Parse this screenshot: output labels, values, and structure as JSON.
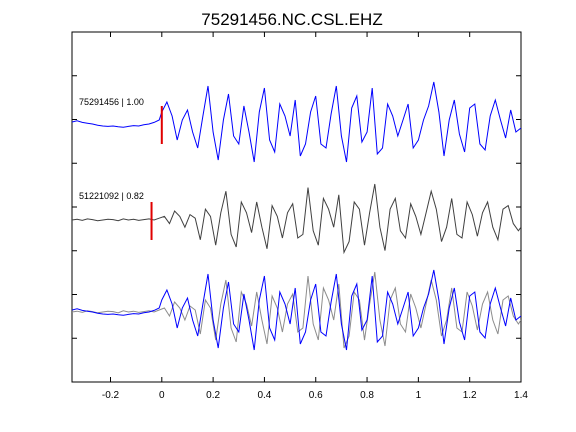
{
  "chart_data": {
    "type": "line",
    "title": "75291456.NC.CSL.EHZ",
    "xlabel": "",
    "ylabel": "",
    "xlim": [
      -0.35,
      1.4
    ],
    "x_ticks": [
      -0.2,
      0,
      0.2,
      0.4,
      0.6,
      0.8,
      1,
      1.2,
      1.4
    ],
    "x_tick_labels": [
      "-0.2",
      "0",
      "0.2",
      "0.4",
      "0.6",
      "0.8",
      "1",
      "1.2",
      "1.4"
    ],
    "y_tick_count": 7,
    "grid": false,
    "colors": {
      "trace_primary": "#0000ff",
      "trace_secondary": "#404040",
      "trace_overlay": "#8c8c8c",
      "pick_marker": "#e00000",
      "axes": "#000000"
    },
    "series": [
      {
        "name": "75291456 | 1.00",
        "color": "#0000ff",
        "pick_time": 0.0,
        "x": [
          -0.35,
          -0.33,
          -0.31,
          -0.29,
          -0.27,
          -0.25,
          -0.23,
          -0.21,
          -0.19,
          -0.17,
          -0.15,
          -0.13,
          -0.11,
          -0.09,
          -0.07,
          -0.05,
          -0.03,
          -0.01,
          0.0,
          0.02,
          0.04,
          0.06,
          0.08,
          0.1,
          0.12,
          0.14,
          0.16,
          0.18,
          0.2,
          0.22,
          0.24,
          0.26,
          0.28,
          0.3,
          0.32,
          0.34,
          0.36,
          0.38,
          0.4,
          0.42,
          0.44,
          0.46,
          0.48,
          0.5,
          0.52,
          0.54,
          0.56,
          0.58,
          0.6,
          0.62,
          0.64,
          0.66,
          0.68,
          0.7,
          0.72,
          0.74,
          0.76,
          0.78,
          0.8,
          0.82,
          0.84,
          0.86,
          0.88,
          0.9,
          0.92,
          0.94,
          0.96,
          0.98,
          1.0,
          1.02,
          1.04,
          1.06,
          1.08,
          1.1,
          1.12,
          1.14,
          1.16,
          1.18,
          1.2,
          1.22,
          1.24,
          1.26,
          1.28,
          1.3,
          1.32,
          1.34,
          1.36,
          1.38,
          1.4
        ],
        "y": [
          0.05,
          0.08,
          0.04,
          0.02,
          0.0,
          -0.03,
          -0.05,
          -0.06,
          -0.05,
          -0.07,
          -0.08,
          -0.06,
          -0.04,
          -0.05,
          -0.02,
          0.0,
          0.04,
          0.1,
          0.3,
          0.55,
          0.2,
          -0.4,
          0.1,
          0.35,
          -0.2,
          -0.6,
          0.2,
          0.95,
          -0.2,
          -0.9,
          0.1,
          0.75,
          -0.3,
          -0.5,
          0.45,
          -0.2,
          -0.95,
          0.3,
          0.9,
          -0.4,
          -0.7,
          0.5,
          0.2,
          -0.3,
          0.6,
          -0.8,
          -0.5,
          0.3,
          0.7,
          -0.5,
          -0.6,
          0.25,
          0.95,
          -0.3,
          -0.95,
          0.4,
          0.7,
          -0.45,
          -0.2,
          0.9,
          -0.75,
          -0.6,
          0.5,
          0.2,
          -0.3,
          0.1,
          0.5,
          -0.6,
          -0.4,
          0.1,
          0.45,
          1.05,
          0.3,
          -0.8,
          0.1,
          0.6,
          -0.25,
          -0.7,
          0.4,
          0.5,
          -0.5,
          -0.65,
          0.2,
          0.6,
          0.1,
          -0.35,
          0.35,
          -0.2,
          -0.1
        ]
      },
      {
        "name": "51221092 | 0.82",
        "color": "#404040",
        "pick_time": -0.04,
        "x": [
          -0.35,
          -0.33,
          -0.31,
          -0.29,
          -0.27,
          -0.25,
          -0.23,
          -0.21,
          -0.19,
          -0.17,
          -0.15,
          -0.13,
          -0.11,
          -0.09,
          -0.07,
          -0.05,
          -0.03,
          -0.01,
          0.01,
          0.03,
          0.05,
          0.07,
          0.09,
          0.11,
          0.13,
          0.15,
          0.17,
          0.19,
          0.21,
          0.23,
          0.25,
          0.27,
          0.29,
          0.31,
          0.33,
          0.35,
          0.37,
          0.39,
          0.41,
          0.43,
          0.45,
          0.47,
          0.49,
          0.51,
          0.53,
          0.55,
          0.57,
          0.59,
          0.61,
          0.63,
          0.65,
          0.67,
          0.69,
          0.71,
          0.73,
          0.75,
          0.77,
          0.79,
          0.81,
          0.83,
          0.85,
          0.87,
          0.89,
          0.91,
          0.93,
          0.95,
          0.97,
          0.99,
          1.01,
          1.03,
          1.05,
          1.07,
          1.09,
          1.11,
          1.13,
          1.15,
          1.17,
          1.19,
          1.21,
          1.23,
          1.25,
          1.27,
          1.29,
          1.31,
          1.33,
          1.35,
          1.37,
          1.39,
          1.4
        ],
        "y": [
          0.0,
          0.02,
          -0.01,
          0.03,
          0.01,
          -0.02,
          0.0,
          0.02,
          0.01,
          -0.02,
          0.03,
          0.0,
          0.02,
          -0.01,
          0.01,
          0.03,
          0.0,
          0.05,
          0.1,
          -0.1,
          0.25,
          0.1,
          -0.2,
          0.15,
          0.05,
          -0.55,
          0.3,
          0.1,
          -0.7,
          0.2,
          0.8,
          -0.4,
          -0.75,
          0.5,
          0.2,
          -0.35,
          0.5,
          -0.2,
          -0.8,
          0.4,
          0.1,
          -0.5,
          0.2,
          0.45,
          -0.5,
          -0.4,
          0.9,
          -0.3,
          -0.7,
          0.6,
          0.3,
          -0.2,
          0.7,
          -0.9,
          -0.6,
          0.5,
          0.3,
          -0.7,
          0.2,
          1.0,
          -0.2,
          -0.85,
          0.3,
          0.6,
          -0.3,
          -0.5,
          0.45,
          0.1,
          -0.4,
          0.2,
          0.8,
          0.3,
          -0.6,
          -0.2,
          0.6,
          -0.4,
          -0.5,
          0.5,
          0.15,
          -0.45,
          0.2,
          0.5,
          -0.2,
          -0.55,
          0.3,
          0.4,
          -0.1,
          -0.3,
          -0.2
        ]
      }
    ],
    "overlay": {
      "series": [
        "75291456 | 1.00",
        "51221092 | 0.82"
      ],
      "colors": [
        "#0000ff",
        "#8c8c8c"
      ]
    }
  }
}
